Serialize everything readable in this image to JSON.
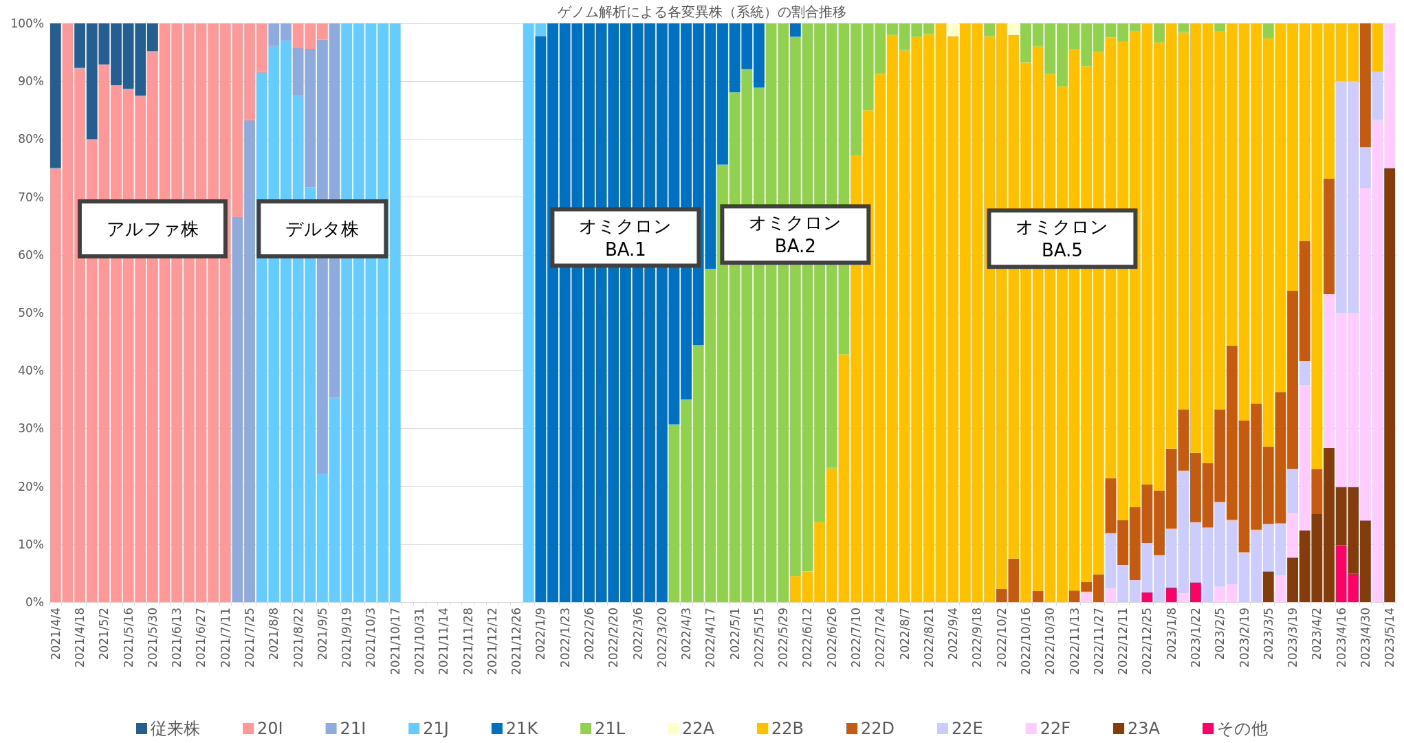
{
  "chart_data": {
    "type": "bar",
    "stacked": true,
    "title": "ゲノム解析による各変異株（系統）の割合推移",
    "categories": [
      "2021/4/4",
      null,
      "2021/4/18",
      null,
      "2021/5/2",
      null,
      "2021/5/16",
      null,
      "2021/5/30",
      null,
      "2021/6/13",
      null,
      "2021/6/27",
      null,
      "2021/7/11",
      null,
      "2021/7/25",
      null,
      "2021/8/8",
      null,
      "2021/8/22",
      null,
      "2021/9/5",
      null,
      "2021/9/19",
      null,
      "2021/10/3",
      null,
      "2021/10/17",
      null,
      "2021/10/31",
      null,
      "2021/11/14",
      null,
      "2021/11/28",
      null,
      "2021/12/12",
      null,
      "2021/12/26",
      null,
      "2022/1/9",
      null,
      "2022/1/23",
      null,
      "2022/2/6",
      null,
      "2022/2/20",
      null,
      "2022/3/6",
      null,
      "2022/3/20",
      null,
      "2022/4/3",
      null,
      "2022/4/17",
      null,
      "2022/5/1",
      null,
      "2022/5/15",
      null,
      "2022/5/29",
      null,
      "2022/6/12",
      null,
      "2022/6/26",
      null,
      "2022/7/10",
      null,
      "2022/7/24",
      null,
      "2022/8/7",
      null,
      "2022/8/21",
      null,
      "2022/9/4",
      null,
      "2022/9/18",
      null,
      "2022/10/2",
      null,
      "2022/10/16",
      null,
      "2022/10/30",
      null,
      "2022/11/13",
      null,
      "2022/11/27",
      null,
      "2022/12/11",
      null,
      "2022/12/25",
      null,
      "2023/1/8",
      null,
      "2023/1/22",
      null,
      "2023/2/5",
      null,
      "2023/2/19",
      null,
      "2023/3/5",
      null,
      "2023/3/19",
      null,
      "2023/4/2",
      null,
      "2023/4/16",
      null,
      "2023/4/30",
      null,
      "2023/5/14"
    ],
    "series": [
      {
        "name": "その他",
        "color": "#ff0066",
        "values": [
          null,
          null,
          null,
          null,
          null,
          null,
          null,
          null,
          null,
          null,
          null,
          null,
          null,
          null,
          null,
          null,
          null,
          null,
          null,
          null,
          null,
          null,
          null,
          null,
          null,
          null,
          null,
          null,
          null,
          null,
          null,
          null,
          null,
          null,
          null,
          null,
          null,
          null,
          null,
          null,
          null,
          null,
          null,
          null,
          null,
          null,
          null,
          null,
          null,
          null,
          null,
          null,
          null,
          null,
          null,
          null,
          null,
          null,
          null,
          null,
          null,
          null,
          null,
          null,
          null,
          null,
          null,
          null,
          null,
          null,
          null,
          null,
          null,
          null,
          null,
          null,
          null,
          null,
          null,
          null,
          null,
          null,
          null,
          null,
          null,
          null,
          null,
          null,
          null,
          null,
          1.7,
          null,
          2.5,
          null,
          3.4,
          null,
          null,
          null,
          null,
          null,
          null,
          null,
          null,
          null,
          null,
          null,
          9.8,
          4.9,
          null,
          null,
          null
        ]
      },
      {
        "name": "23A",
        "color": "#843c0c",
        "values": [
          null,
          null,
          null,
          null,
          null,
          null,
          null,
          null,
          null,
          null,
          null,
          null,
          null,
          null,
          null,
          null,
          null,
          null,
          null,
          null,
          null,
          null,
          null,
          null,
          null,
          null,
          null,
          null,
          null,
          null,
          null,
          null,
          null,
          null,
          null,
          null,
          null,
          null,
          null,
          null,
          null,
          null,
          null,
          null,
          null,
          null,
          null,
          null,
          null,
          null,
          null,
          null,
          null,
          null,
          null,
          null,
          null,
          null,
          null,
          null,
          null,
          null,
          null,
          null,
          null,
          null,
          null,
          null,
          null,
          null,
          null,
          null,
          null,
          null,
          null,
          null,
          null,
          null,
          null,
          null,
          null,
          null,
          null,
          null,
          null,
          null,
          null,
          null,
          null,
          null,
          null,
          null,
          null,
          null,
          null,
          null,
          null,
          null,
          null,
          null,
          5.3,
          null,
          7.7,
          12.4,
          15.2,
          26.6,
          10.1,
          15.0,
          14.1,
          null,
          75.0
        ]
      },
      {
        "name": "22F",
        "color": "#ffccff",
        "values": [
          null,
          null,
          null,
          null,
          null,
          null,
          null,
          null,
          null,
          null,
          null,
          null,
          null,
          null,
          null,
          null,
          null,
          null,
          null,
          null,
          null,
          null,
          null,
          null,
          null,
          null,
          null,
          null,
          null,
          null,
          null,
          null,
          null,
          null,
          null,
          null,
          null,
          null,
          null,
          null,
          null,
          null,
          null,
          null,
          null,
          null,
          null,
          null,
          null,
          null,
          null,
          null,
          null,
          null,
          null,
          null,
          null,
          null,
          null,
          null,
          null,
          null,
          null,
          null,
          null,
          null,
          null,
          null,
          null,
          null,
          null,
          null,
          null,
          null,
          null,
          null,
          null,
          null,
          null,
          null,
          null,
          null,
          null,
          null,
          null,
          1.8,
          null,
          2.4,
          null,
          null,
          null,
          null,
          null,
          1.5,
          null,
          null,
          2.7,
          3.1,
          null,
          null,
          null,
          4.6,
          7.7,
          25.1,
          null,
          26.6,
          30.1,
          30.1,
          57.4,
          83.3,
          25.0
        ]
      },
      {
        "name": "22E",
        "color": "#ccccff",
        "values": [
          null,
          null,
          null,
          null,
          null,
          null,
          null,
          null,
          null,
          null,
          null,
          null,
          null,
          null,
          null,
          null,
          null,
          null,
          null,
          null,
          null,
          null,
          null,
          null,
          null,
          null,
          null,
          null,
          null,
          null,
          null,
          null,
          null,
          null,
          null,
          null,
          null,
          null,
          null,
          null,
          null,
          null,
          null,
          null,
          null,
          null,
          null,
          null,
          null,
          null,
          null,
          null,
          null,
          null,
          null,
          null,
          null,
          null,
          null,
          null,
          null,
          null,
          null,
          null,
          null,
          null,
          null,
          null,
          null,
          null,
          null,
          null,
          null,
          null,
          null,
          null,
          null,
          null,
          null,
          null,
          null,
          null,
          null,
          null,
          null,
          null,
          null,
          9.5,
          6.4,
          3.8,
          8.5,
          8.1,
          10.2,
          21.2,
          10.4,
          12.9,
          14.6,
          11.1,
          8.6,
          12.5,
          8.2,
          9.0,
          7.6,
          4.2,
          null,
          null,
          40.0,
          40.0,
          7.1,
          8.4,
          null
        ]
      },
      {
        "name": "22D",
        "color": "#c55a11",
        "values": [
          null,
          null,
          null,
          null,
          null,
          null,
          null,
          null,
          null,
          null,
          null,
          null,
          null,
          null,
          null,
          null,
          null,
          null,
          null,
          null,
          null,
          null,
          null,
          null,
          null,
          null,
          null,
          null,
          null,
          null,
          null,
          null,
          null,
          null,
          null,
          null,
          null,
          null,
          null,
          null,
          null,
          null,
          null,
          null,
          null,
          null,
          null,
          null,
          null,
          null,
          null,
          null,
          null,
          null,
          null,
          null,
          null,
          null,
          null,
          null,
          null,
          null,
          null,
          null,
          null,
          null,
          null,
          null,
          null,
          null,
          null,
          null,
          null,
          null,
          null,
          null,
          null,
          null,
          2.3,
          7.5,
          null,
          1.9,
          null,
          null,
          2.0,
          1.7,
          4.8,
          9.5,
          7.8,
          12.6,
          10.1,
          11.2,
          13.8,
          10.6,
          12.0,
          11.1,
          16.0,
          30.1,
          22.8,
          21.8,
          13.4,
          22.7,
          30.8,
          20.7,
          7.8,
          20.0,
          null,
          null,
          21.4,
          null,
          null
        ]
      },
      {
        "name": "22B",
        "color": "#ffc000",
        "values": [
          null,
          null,
          null,
          null,
          null,
          null,
          null,
          null,
          null,
          null,
          null,
          null,
          null,
          null,
          null,
          null,
          null,
          null,
          null,
          null,
          null,
          null,
          null,
          null,
          null,
          null,
          null,
          null,
          null,
          null,
          null,
          null,
          null,
          null,
          null,
          null,
          null,
          null,
          null,
          null,
          null,
          null,
          null,
          null,
          null,
          null,
          null,
          null,
          null,
          null,
          null,
          null,
          null,
          null,
          null,
          null,
          null,
          null,
          null,
          null,
          null,
          4.5,
          5.3,
          13.9,
          23.2,
          42.8,
          77.2,
          85.0,
          91.3,
          98.0,
          95.4,
          97.7,
          98.2,
          100,
          97.8,
          100,
          100,
          97.8,
          97.7,
          90.5,
          93.3,
          94.2,
          91.3,
          89.2,
          93.6,
          89.1,
          90.3,
          76.2,
          82.7,
          82.3,
          79.7,
          77.4,
          73.5,
          65.2,
          74.2,
          76.0,
          65.3,
          55.7,
          68.6,
          65.7,
          70.5,
          63.7,
          46.2,
          37.6,
          77.0,
          26.8,
          10.0,
          10.0,
          null,
          8.3,
          null
        ]
      },
      {
        "name": "22A",
        "color": "#ffffcc",
        "values": [
          null,
          null,
          null,
          null,
          null,
          null,
          null,
          null,
          null,
          null,
          null,
          null,
          null,
          null,
          null,
          null,
          null,
          null,
          null,
          null,
          null,
          null,
          null,
          null,
          null,
          null,
          null,
          null,
          null,
          null,
          null,
          null,
          null,
          null,
          null,
          null,
          null,
          null,
          null,
          null,
          null,
          null,
          null,
          null,
          null,
          null,
          null,
          null,
          null,
          null,
          null,
          null,
          null,
          null,
          null,
          null,
          null,
          null,
          null,
          null,
          null,
          null,
          null,
          null,
          null,
          null,
          null,
          null,
          null,
          null,
          null,
          null,
          null,
          null,
          2.2,
          null,
          null,
          null,
          null,
          2.0,
          null,
          null,
          null,
          null,
          null,
          null,
          null,
          null,
          null,
          null,
          null,
          null,
          null,
          null,
          null,
          null,
          null,
          null,
          null,
          null,
          null,
          null,
          null,
          null,
          null,
          null,
          null,
          null,
          null,
          null,
          null
        ]
      },
      {
        "name": "21L",
        "color": "#92d050",
        "values": [
          null,
          null,
          null,
          null,
          null,
          null,
          null,
          null,
          null,
          null,
          null,
          null,
          null,
          null,
          null,
          null,
          null,
          null,
          null,
          null,
          null,
          null,
          null,
          null,
          null,
          null,
          null,
          null,
          null,
          null,
          null,
          null,
          null,
          null,
          null,
          null,
          null,
          null,
          null,
          null,
          null,
          null,
          null,
          null,
          null,
          null,
          null,
          null,
          null,
          null,
          null,
          30.7,
          35.0,
          44.4,
          57.6,
          75.6,
          88.1,
          92.1,
          88.9,
          100,
          100,
          93.2,
          94.7,
          86.1,
          76.8,
          57.2,
          22.8,
          15.0,
          8.7,
          2.0,
          4.6,
          2.3,
          1.8,
          null,
          null,
          null,
          null,
          2.2,
          null,
          null,
          6.7,
          3.9,
          8.7,
          10.8,
          4.4,
          7.4,
          4.9,
          2.4,
          3.1,
          1.3,
          null,
          3.3,
          null,
          1.5,
          null,
          null,
          1.4,
          null,
          null,
          null,
          2.6,
          null,
          null,
          null,
          null,
          null,
          null,
          null,
          null,
          null,
          null
        ]
      },
      {
        "name": "21K",
        "color": "#0070c0",
        "values": [
          null,
          null,
          null,
          null,
          null,
          null,
          null,
          null,
          null,
          null,
          null,
          null,
          null,
          null,
          null,
          null,
          null,
          null,
          null,
          null,
          null,
          null,
          null,
          null,
          null,
          null,
          null,
          null,
          null,
          null,
          null,
          null,
          null,
          null,
          null,
          null,
          null,
          null,
          null,
          null,
          97.8,
          100,
          100,
          100,
          100,
          100,
          100,
          100,
          100,
          100,
          100,
          69.3,
          65.0,
          55.6,
          42.4,
          24.4,
          11.9,
          7.9,
          11.1,
          null,
          null,
          2.3,
          null,
          null,
          null,
          null,
          null,
          null,
          null,
          null,
          null,
          null,
          null,
          null,
          null,
          null,
          null,
          null,
          null,
          null,
          null,
          null,
          null,
          null,
          null,
          null,
          null,
          null,
          null,
          null,
          null,
          null,
          null,
          null,
          null,
          null,
          null,
          null,
          null,
          null,
          null,
          null,
          null,
          null,
          null,
          null,
          null,
          null,
          null,
          null,
          null
        ]
      },
      {
        "name": "21J",
        "color": "#66ccff",
        "values": [
          null,
          null,
          null,
          null,
          null,
          null,
          null,
          null,
          null,
          null,
          null,
          null,
          null,
          null,
          null,
          null,
          null,
          91.6,
          96.1,
          97.0,
          87.5,
          71.7,
          22.2,
          35.3,
          100,
          100,
          100,
          100,
          100,
          null,
          null,
          null,
          null,
          null,
          null,
          null,
          null,
          null,
          null,
          100,
          2.2,
          null,
          null,
          null,
          null,
          null,
          null,
          null,
          null,
          null,
          null,
          null,
          null,
          null,
          null,
          null,
          null,
          null,
          null,
          null,
          null,
          null,
          null,
          null,
          null,
          null,
          null,
          null,
          null,
          null,
          null,
          null,
          null,
          null,
          null,
          null,
          null,
          null,
          null,
          null,
          null,
          null,
          null,
          null,
          null,
          null,
          null,
          null,
          null,
          null,
          null,
          null,
          null,
          null,
          null,
          null,
          null,
          null,
          null,
          null,
          null,
          null,
          null,
          null,
          null,
          null,
          null,
          null,
          null,
          null,
          null
        ]
      },
      {
        "name": "21I",
        "color": "#8faadc",
        "values": [
          null,
          null,
          null,
          null,
          null,
          null,
          null,
          null,
          null,
          null,
          null,
          null,
          null,
          null,
          null,
          66.6,
          83.3,
          null,
          3.9,
          3.0,
          8.3,
          23.9,
          75.0,
          64.7,
          null,
          null,
          null,
          null,
          null,
          null,
          null,
          null,
          null,
          null,
          null,
          null,
          null,
          null,
          null,
          null,
          null,
          null,
          null,
          null,
          null,
          null,
          null,
          null,
          null,
          null,
          null,
          null,
          null,
          null,
          null,
          null,
          null,
          null,
          null,
          null,
          null,
          null,
          null,
          null,
          null,
          null,
          null,
          null,
          null,
          null,
          null,
          null,
          null,
          null,
          null,
          null,
          null,
          null,
          null,
          null,
          null,
          null,
          null,
          null,
          null,
          null,
          null,
          null,
          null,
          null,
          null,
          null,
          null,
          null,
          null,
          null,
          null,
          null,
          null,
          null,
          null,
          null,
          null,
          null,
          null,
          null,
          null,
          null,
          null,
          null,
          null
        ]
      },
      {
        "name": "20I",
        "color": "#ff9999",
        "values": [
          75.0,
          100,
          92.3,
          80.0,
          92.9,
          89.3,
          88.7,
          87.5,
          95.2,
          100,
          100,
          100,
          100,
          100,
          100,
          33.4,
          16.7,
          8.4,
          null,
          null,
          4.2,
          4.4,
          2.8,
          null,
          null,
          null,
          null,
          null,
          null,
          null,
          null,
          null,
          null,
          null,
          null,
          null,
          null,
          null,
          null,
          null,
          null,
          null,
          null,
          null,
          null,
          null,
          null,
          null,
          null,
          null,
          null,
          null,
          null,
          null,
          null,
          null,
          null,
          null,
          null,
          null,
          null,
          null,
          null,
          null,
          null,
          null,
          null,
          null,
          null,
          null,
          null,
          null,
          null,
          null,
          null,
          null,
          null,
          null,
          null,
          null,
          null,
          null,
          null,
          null,
          null,
          null,
          null,
          null,
          null,
          null,
          null,
          null,
          null,
          null,
          null,
          null,
          null,
          null,
          null,
          null,
          null,
          null,
          null,
          null,
          null,
          null,
          null,
          null,
          null,
          null,
          null
        ]
      },
      {
        "name": "従来株",
        "color": "#255e91",
        "values": [
          25.0,
          null,
          7.7,
          20.0,
          7.1,
          10.7,
          11.3,
          12.5,
          4.8,
          null,
          null,
          null,
          null,
          null,
          null,
          null,
          null,
          null,
          null,
          null,
          null,
          null,
          null,
          null,
          null,
          null,
          null,
          null,
          null,
          null,
          null,
          null,
          null,
          null,
          null,
          null,
          null,
          null,
          null,
          null,
          null,
          null,
          null,
          null,
          null,
          null,
          null,
          null,
          null,
          null,
          null,
          null,
          null,
          null,
          null,
          null,
          null,
          null,
          null,
          null,
          null,
          null,
          null,
          null,
          null,
          null,
          null,
          null,
          null,
          null,
          null,
          null,
          null,
          null,
          null,
          null,
          null,
          null,
          null,
          null,
          null,
          null,
          null,
          null,
          null,
          null,
          null,
          null,
          null,
          null,
          null,
          null,
          null,
          null,
          null,
          null,
          null,
          null,
          null,
          null,
          null,
          null,
          null,
          null,
          null,
          null,
          null,
          null,
          null,
          null,
          null
        ]
      }
    ],
    "ylim": [
      0,
      100
    ],
    "yticks": [
      {
        "value": 0,
        "label": "0%"
      },
      {
        "value": 10,
        "label": "10%"
      },
      {
        "value": 20,
        "label": "20%"
      },
      {
        "value": 30,
        "label": "30%"
      },
      {
        "value": 40,
        "label": "40%"
      },
      {
        "value": 50,
        "label": "50%"
      },
      {
        "value": 60,
        "label": "60%"
      },
      {
        "value": 70,
        "label": "70%"
      },
      {
        "value": 80,
        "label": "80%"
      },
      {
        "value": 90,
        "label": "90%"
      },
      {
        "value": 100,
        "label": "100%"
      }
    ],
    "grid": "y",
    "legend": "bottom",
    "annotations": [
      "アルファ株",
      "デルタ株",
      "オミクロン\nBA.1",
      "オミクロン\nBA.2",
      "オミクロン\nBA.5"
    ]
  }
}
